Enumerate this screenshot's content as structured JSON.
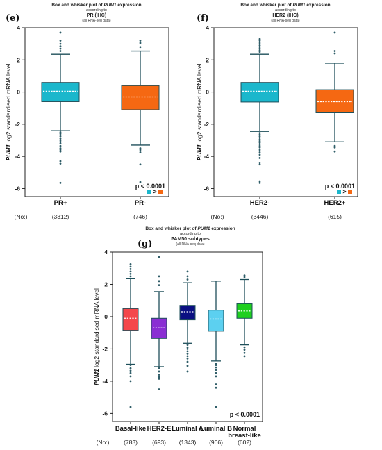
{
  "chart_data": [
    {
      "type": "box",
      "panel_label": "(e)",
      "title_prefix": "Box and whisker plot of ",
      "title_gene": "PUM1",
      "title_suffix": " expression",
      "subtitle_1": "according to",
      "group_title": "PR (IHC)",
      "subtitle_2": "(all RNA-seq data)",
      "ylabel_gene": "PUM1",
      "ylabel_rest": " log2 standardised mRNA level",
      "ylim": [
        -6.5,
        4.0
      ],
      "yticks": [
        4,
        2,
        0,
        -2,
        -4,
        -6
      ],
      "ytick_labels": [
        "4",
        "2",
        "0",
        "-2",
        "-4",
        "-6"
      ],
      "categories": [
        "PR+",
        "PR-"
      ],
      "counts_label": "(No:)",
      "counts": [
        "(3312)",
        "(746)"
      ],
      "colors": [
        "#1bb7cc",
        "#f56812"
      ],
      "boxes": [
        {
          "whislo": -2.4,
          "q1": -0.6,
          "med": 0.05,
          "q3": 0.6,
          "whishi": 2.35,
          "outliers": [
            2.55,
            2.7,
            2.85,
            3.0,
            3.2,
            3.7,
            -2.5,
            -2.6,
            -2.75,
            -2.9,
            -3.0,
            -3.1,
            -3.2,
            -3.35,
            -3.5,
            -3.6,
            -3.7,
            -4.3,
            -4.45,
            -5.65
          ]
        },
        {
          "whislo": -3.3,
          "q1": -1.1,
          "med": -0.3,
          "q3": 0.4,
          "whishi": 2.55,
          "outliers": [
            2.8,
            3.05,
            3.2,
            -3.5,
            -3.6,
            -3.75,
            -4.5,
            -5.6
          ]
        }
      ],
      "pvalue": "p < 0.0001",
      "pvalue_op": ">"
    },
    {
      "type": "box",
      "panel_label": "(f)",
      "title_prefix": "Box and whisker plot of ",
      "title_gene": "PUM1",
      "title_suffix": " expression",
      "subtitle_1": "according to",
      "group_title": "HER2 (IHC)",
      "subtitle_2": "(all RNA-seq data)",
      "ylabel_gene": "PUM1",
      "ylabel_rest": " log2 standardised mRNA level",
      "ylim": [
        -6.5,
        4.0
      ],
      "yticks": [
        4,
        2,
        0,
        -2,
        -4,
        -6
      ],
      "ytick_labels": [
        "4",
        "2",
        "0",
        "-2",
        "-4",
        "-6"
      ],
      "categories": [
        "HER2-",
        "HER2+"
      ],
      "counts_label": "(No:)",
      "counts": [
        "(3446)",
        "(615)"
      ],
      "colors": [
        "#1bb7cc",
        "#f56812"
      ],
      "boxes": [
        {
          "whislo": -2.45,
          "q1": -0.62,
          "med": 0.05,
          "q3": 0.6,
          "whishi": 2.35,
          "outliers": [
            2.5,
            2.6,
            2.7,
            2.8,
            2.9,
            3.0,
            3.1,
            3.2,
            3.3,
            -2.55,
            -2.65,
            -2.75,
            -2.85,
            -2.95,
            -3.05,
            -3.15,
            -3.25,
            -3.35,
            -3.45,
            -3.6,
            -3.75,
            -3.9,
            -4.1,
            -4.4,
            -4.5,
            -5.55,
            -5.65
          ]
        },
        {
          "whislo": -3.1,
          "q1": -1.25,
          "med": -0.6,
          "q3": 0.15,
          "whishi": 1.8,
          "outliers": [
            2.4,
            2.55,
            3.7,
            -3.35,
            -3.45,
            -3.7
          ]
        }
      ],
      "pvalue": "p < 0.0001",
      "pvalue_op": ">"
    },
    {
      "type": "box",
      "panel_label": "(g)",
      "title_prefix": "Box and whisker plot of ",
      "title_gene": "PUM1",
      "title_suffix": " expression",
      "subtitle_1": "according to",
      "group_title": "PAM50 subtypes",
      "subtitle_2": "(all RNA-seq data)",
      "ylabel_gene": "PUM1",
      "ylabel_rest": " log2 standardised mRNA level",
      "ylim": [
        -6.5,
        4.0
      ],
      "yticks": [
        4,
        2,
        0,
        -2,
        -4,
        -6
      ],
      "ytick_labels": [
        "4",
        "2",
        "0",
        "-2",
        "-4",
        "-6"
      ],
      "categories": [
        [
          "Basal-like"
        ],
        [
          "HER2-E"
        ],
        [
          "Luminal A"
        ],
        [
          "Luminal B"
        ],
        [
          "Normal",
          "breast-like"
        ]
      ],
      "counts_label": "(No:)",
      "counts": [
        "(783)",
        "(693)",
        "(1343)",
        "(966)",
        "(602)"
      ],
      "colors": [
        "#f4474b",
        "#8a2fd3",
        "#0a0f82",
        "#5cd0f0",
        "#1fcf1f"
      ],
      "boxes": [
        {
          "whislo": -2.95,
          "q1": -0.85,
          "med": -0.1,
          "q3": 0.5,
          "whishi": 2.35,
          "outliers": [
            2.5,
            2.65,
            2.8,
            2.95,
            3.1,
            3.25,
            -3.0,
            -3.2,
            -3.35,
            -3.5,
            -3.7,
            -4.0,
            -5.6
          ]
        },
        {
          "whislo": -3.1,
          "q1": -1.35,
          "med": -0.7,
          "q3": -0.1,
          "whishi": 1.55,
          "outliers": [
            1.95,
            2.2,
            2.5,
            3.7,
            -3.2,
            -3.4,
            -3.6,
            -3.75,
            -3.85,
            -4.5
          ]
        },
        {
          "whislo": -1.65,
          "q1": -0.2,
          "med": 0.3,
          "q3": 0.7,
          "whishi": 2.1,
          "outliers": [
            2.3,
            2.5,
            2.8,
            -1.75,
            -1.9,
            -2.0,
            -2.15,
            -2.3,
            -2.45,
            -2.6,
            -2.8,
            -3.05,
            -3.4
          ]
        },
        {
          "whislo": -2.75,
          "q1": -0.9,
          "med": -0.15,
          "q3": 0.4,
          "whishi": 2.2,
          "outliers": [
            -2.9,
            -3.0,
            -3.15,
            -3.3,
            -3.5,
            -3.7,
            -4.2,
            -4.4,
            -5.6
          ]
        },
        {
          "whislo": -1.75,
          "q1": -0.1,
          "med": 0.35,
          "q3": 0.8,
          "whishi": 2.3,
          "outliers": [
            2.45,
            2.55,
            -1.9,
            -2.05,
            -2.25,
            -2.45
          ]
        }
      ],
      "pvalue": "p < 0.0001"
    }
  ]
}
